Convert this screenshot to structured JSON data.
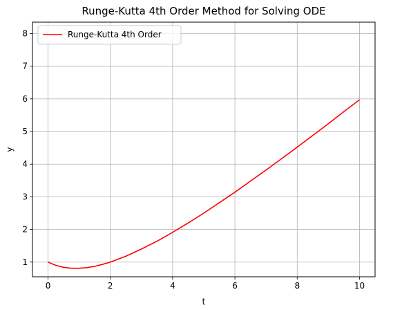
{
  "chart_data": {
    "type": "line",
    "title": "Runge-Kutta 4th Order Method for Solving ODE",
    "xlabel": "t",
    "ylabel": "y",
    "xlim": [
      -0.5,
      10.5
    ],
    "ylim": [
      0.55,
      8.35
    ],
    "xticks": [
      0,
      2,
      4,
      6,
      8,
      10
    ],
    "yticks": [
      1,
      2,
      3,
      4,
      5,
      6,
      7,
      8
    ],
    "grid": true,
    "legend_position": "top-left",
    "series": [
      {
        "name": "Runge-Kutta 4th Order",
        "color": "#ff0000",
        "x": [
          0,
          0.25,
          0.5,
          0.75,
          1,
          1.25,
          1.5,
          1.75,
          2,
          2.5,
          3,
          3.5,
          4,
          4.5,
          5,
          5.5,
          6,
          6.5,
          7,
          7.5,
          8,
          8.5,
          9,
          9.5,
          10
        ],
        "y": [
          1.0,
          0.9,
          0.84,
          0.81,
          0.81,
          0.83,
          0.87,
          0.93,
          1.0,
          1.18,
          1.4,
          1.64,
          1.91,
          2.2,
          2.5,
          2.82,
          3.14,
          3.48,
          3.82,
          4.17,
          4.52,
          4.88,
          5.24,
          5.61,
          5.97
        ]
      }
    ]
  }
}
